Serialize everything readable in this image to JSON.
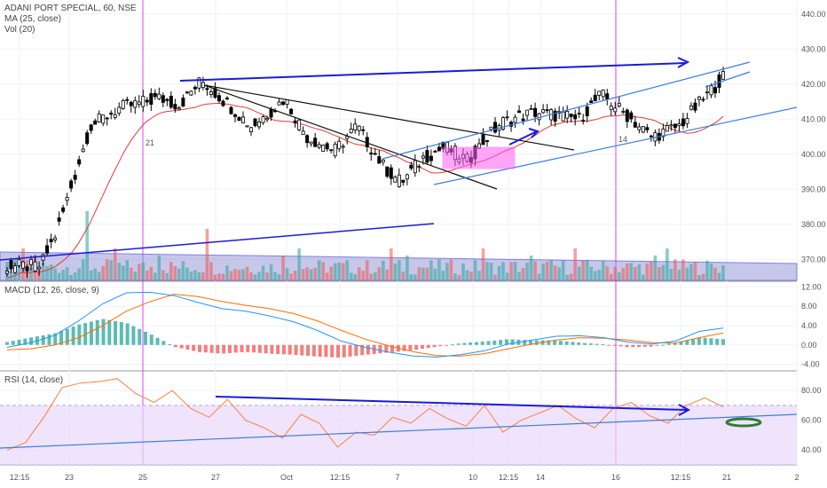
{
  "header": {
    "symbol_line": "ADANI PORT SPECIAL, 60, NSE",
    "ma_line": "MA (25, close)",
    "vol_line": "Vol (20)"
  },
  "macd_header": {
    "label": "MACD (12, 26, close, 9)"
  },
  "rsi_header": {
    "label": "RSI (14, close)"
  },
  "colors": {
    "up": "#26a69a",
    "down": "#ef5350",
    "candle": "#000000",
    "ma": "#e53935",
    "macd_line": "#2196f3",
    "signal_line": "#ff6d00",
    "rsi_line": "#ff7f3f",
    "rsi_band": "#e8d9fb",
    "trend_blue": "#1a1adb",
    "trend_black": "#111111",
    "channel": "#3b7ddd",
    "marker": "#e040fb",
    "highlight_box": "#ff5cf4",
    "volume_zone": "#9a9ad8",
    "oval": "#2e7d32"
  },
  "chart_data": [
    {
      "type": "candlestick",
      "title": "ADANI PORT SPECIAL, 60, NSE",
      "ylim": [
        364,
        444
      ],
      "yticks": [
        370,
        380,
        390,
        400,
        410,
        420,
        430,
        440
      ],
      "x_labels": [
        "12:15",
        "23",
        "25",
        "27",
        "Oct",
        "12:15",
        "7",
        "10",
        "12:15",
        "14",
        "16",
        "12:15",
        "21",
        "2"
      ],
      "annotation_text": [
        "21",
        "14"
      ],
      "ma_label": "MA (25, close)",
      "volume_label": "Vol (20)"
    },
    {
      "type": "line",
      "title": "MACD (12, 26, close, 9)",
      "ylim": [
        -5,
        13
      ],
      "yticks": [
        -4,
        0,
        4,
        8,
        12
      ],
      "series": [
        {
          "name": "MACD",
          "values": [
            -0.5,
            0.5,
            2.0,
            5.0,
            8.5,
            10.8,
            10.9,
            10.2,
            8.8,
            7.5,
            7.0,
            6.0,
            4.8,
            3.0,
            0.8,
            -0.5,
            -1.5,
            -2.3,
            -2.5,
            -2.0,
            -1.2,
            0.2,
            1.0,
            1.8,
            1.9,
            1.5,
            0.6,
            0.2,
            0.8,
            2.8,
            3.5
          ]
        },
        {
          "name": "Signal",
          "values": [
            -1.0,
            -0.8,
            0.0,
            1.5,
            4.0,
            7.0,
            9.0,
            10.5,
            10.0,
            9.0,
            8.2,
            7.5,
            6.5,
            5.0,
            3.0,
            1.2,
            -0.2,
            -1.4,
            -2.2,
            -2.3,
            -1.8,
            -0.8,
            0.2,
            1.0,
            1.5,
            1.4,
            1.0,
            0.5,
            0.4,
            1.5,
            2.5
          ]
        }
      ]
    },
    {
      "type": "line",
      "title": "RSI (14, close)",
      "ylim": [
        30,
        92
      ],
      "yticks": [
        40,
        60,
        80
      ],
      "band": [
        30,
        70
      ],
      "series": [
        {
          "name": "RSI",
          "values": [
            40,
            45,
            62,
            82,
            85,
            86,
            88,
            78,
            72,
            80,
            68,
            62,
            74,
            60,
            55,
            48,
            64,
            58,
            42,
            52,
            50,
            62,
            58,
            68,
            61,
            56,
            70,
            52,
            60,
            65,
            70,
            61,
            55,
            68,
            72,
            63,
            58,
            70,
            75,
            69
          ]
        }
      ]
    }
  ]
}
